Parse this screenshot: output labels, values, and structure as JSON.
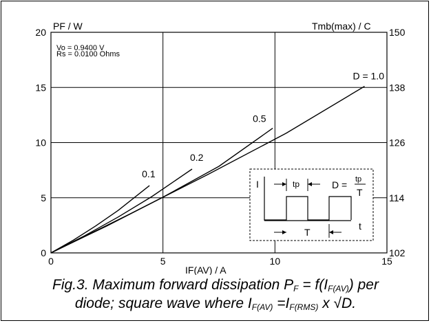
{
  "chart_data": {
    "type": "line",
    "ylabel": "PF / W",
    "y2label": "Tmb(max) / C",
    "xlabel": "IF(AV) / A",
    "xlim": [
      0,
      15
    ],
    "ylim": [
      0,
      20
    ],
    "x_ticks": [
      "0",
      "5",
      "10",
      "15"
    ],
    "y_ticks": [
      "0",
      "5",
      "10",
      "15",
      "20"
    ],
    "y2_ticks": [
      "150",
      "138",
      "126",
      "114",
      "102"
    ],
    "grid": true,
    "params": [
      "Vo = 0.9400 V",
      "Rs = 0.0100 Ohms"
    ],
    "series": [
      {
        "name": "0.1",
        "x": [
          0,
          1,
          2,
          3,
          4.4
        ],
        "y": [
          0,
          1.15,
          2.45,
          3.85,
          6.1
        ]
      },
      {
        "name": "0.2",
        "x": [
          0,
          1.5,
          3,
          4.5,
          6.3
        ],
        "y": [
          0,
          1.55,
          3.25,
          5.1,
          7.6
        ]
      },
      {
        "name": "0.5",
        "x": [
          0,
          2.5,
          5,
          7.5,
          9.9
        ],
        "y": [
          0,
          2.45,
          5.05,
          7.85,
          11.3
        ]
      },
      {
        "name": "D = 1.0",
        "x": [
          0,
          3.5,
          7,
          10.5,
          14
        ],
        "y": [
          0,
          3.5,
          7.1,
          10.85,
          15.1
        ]
      }
    ],
    "inset": {
      "axis_i": "I",
      "axis_t": "t",
      "tp": "tp",
      "T": "T",
      "formula_left": "D =",
      "formula_num": "tp",
      "formula_den": "T"
    }
  },
  "caption": {
    "line1_prefix": "Fig.3.   Maximum forward dissipation P",
    "line1_sub1": "F",
    "line1_mid": " = f(I",
    "line1_sub2": "F(AV)",
    "line1_suffix": ") per",
    "line2_prefix": "diode; square wave where I",
    "line2_sub1": "F(AV)",
    "line2_mid": " =I",
    "line2_sub2": "F(RMS)",
    "line2_suffix": " x √D."
  }
}
